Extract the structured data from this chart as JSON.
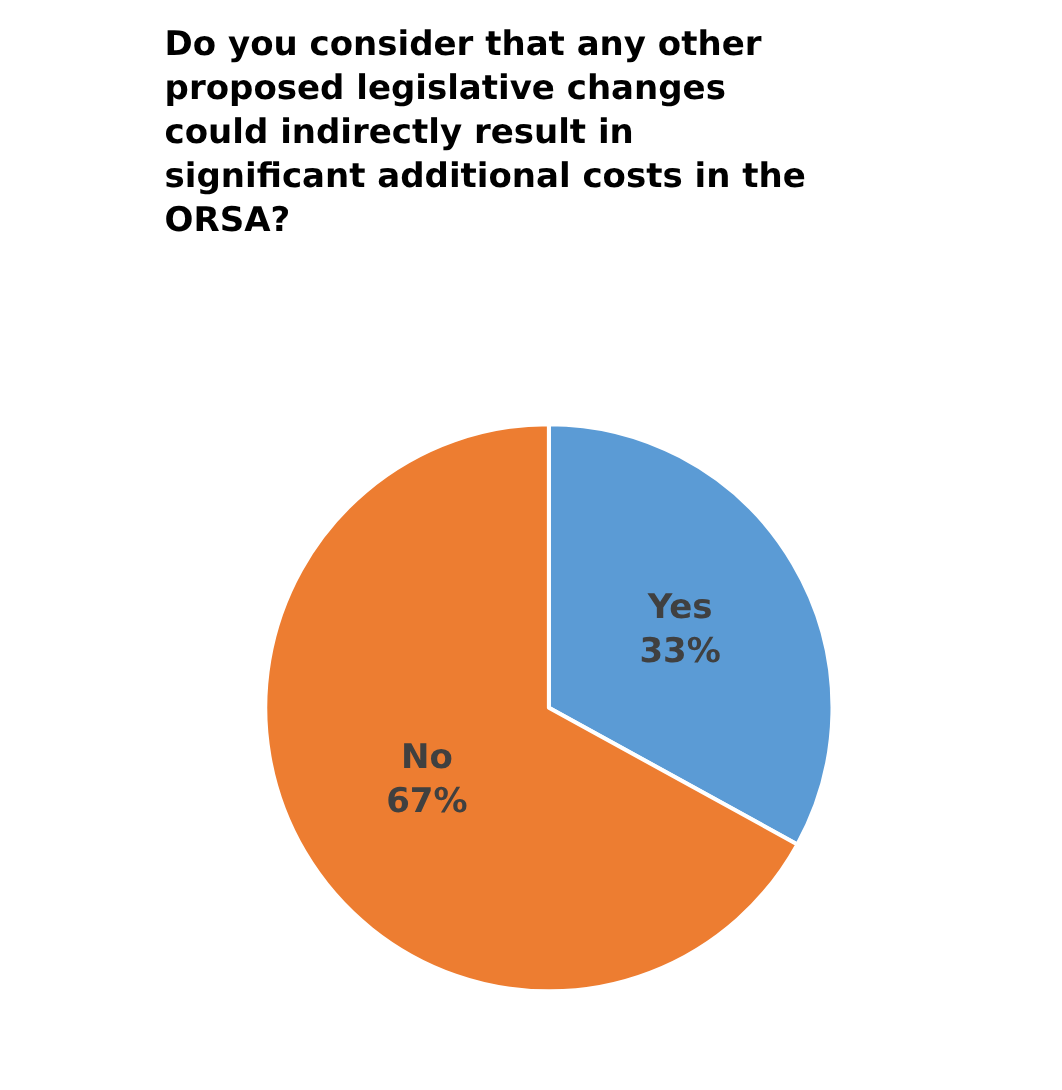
{
  "chart_data": {
    "type": "pie",
    "title": "Do you consider that any other\nproposed legislative changes\ncould indirectly result in\nsignificant additional costs in the\nORSA?",
    "categories": [
      "Yes",
      "No"
    ],
    "values": [
      33,
      67
    ],
    "colors": [
      "#5b9bd5",
      "#ed7d31"
    ],
    "value_labels": [
      "33%",
      "67%"
    ],
    "legend": false
  }
}
